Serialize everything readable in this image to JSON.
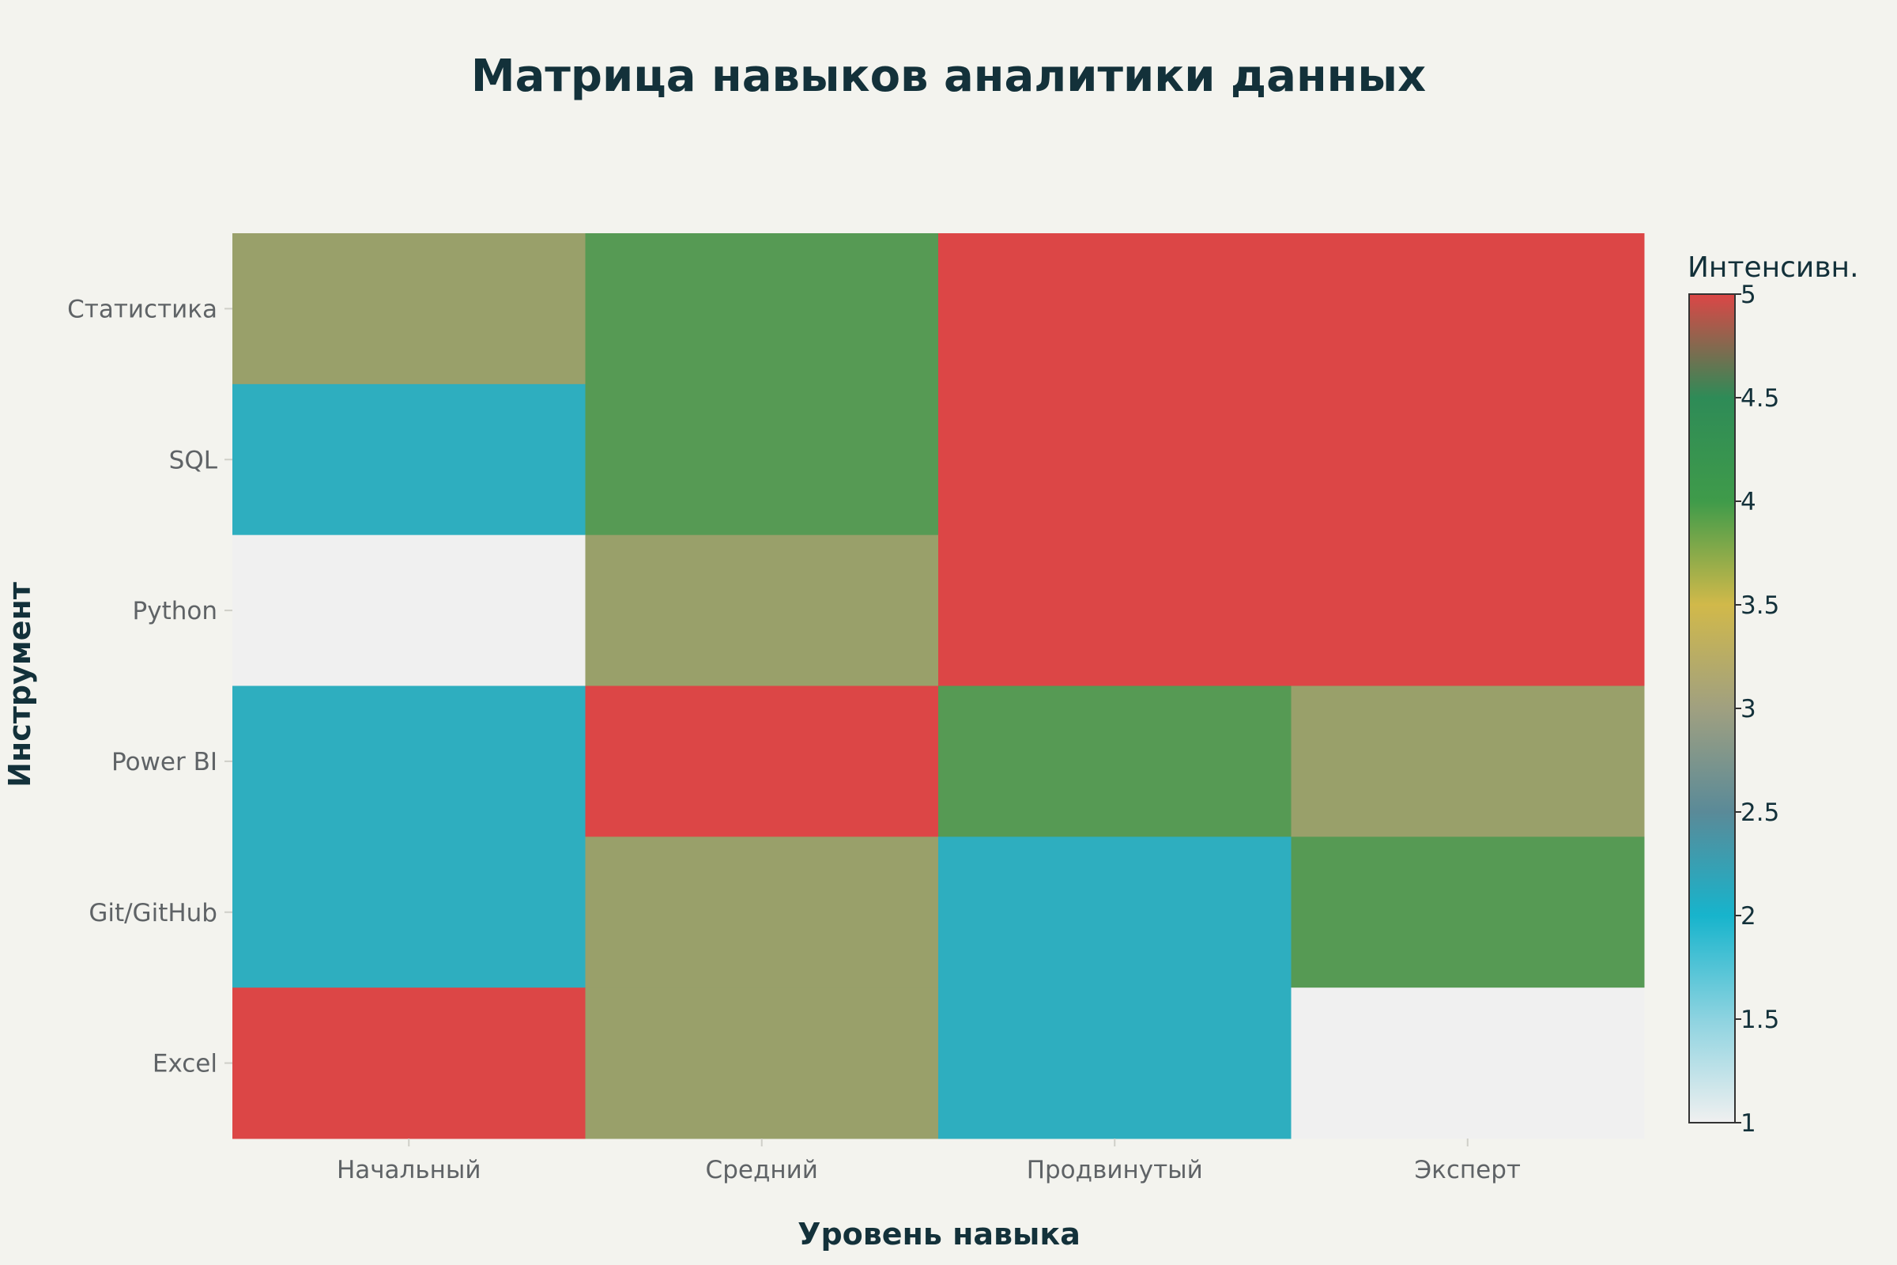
{
  "chart_data": {
    "type": "heatmap",
    "title": "Матрица навыков аналитики данных",
    "xlabel": "Уровень навыка",
    "ylabel": "Инструмент",
    "x_categories": [
      "Начальный",
      "Средний",
      "Продвинутый",
      "Эксперт"
    ],
    "y_categories": [
      "Статистика",
      "SQL",
      "Python",
      "Power BI",
      "Git/GitHub",
      "Excel"
    ],
    "z": [
      [
        3,
        4,
        5,
        5
      ],
      [
        2,
        4,
        5,
        5
      ],
      [
        1,
        3,
        5,
        5
      ],
      [
        2,
        5,
        4,
        3
      ],
      [
        2,
        3,
        2,
        4
      ],
      [
        5,
        3,
        2,
        1
      ]
    ],
    "colorbar": {
      "title": "Интенсивн.",
      "range": [
        1,
        5
      ],
      "ticks": [
        "1",
        "1.5",
        "2",
        "2.5",
        "3",
        "3.5",
        "4",
        "4.5",
        "5"
      ],
      "colorscale": [
        [
          0,
          "#f0f0f0"
        ],
        [
          0.25,
          "#17b4cc"
        ],
        [
          0.5,
          "#a0a080"
        ],
        [
          0.625,
          "#d1b94a"
        ],
        [
          0.75,
          "#3f9b4a"
        ],
        [
          0.875,
          "#2e8b57"
        ],
        [
          1,
          "#dc4646"
        ]
      ]
    },
    "cell_colors": {
      "1": "#f0f0f0",
      "2": "#2eaebf",
      "3": "#99a06a",
      "4": "#569a54",
      "5": "#dc4646"
    }
  }
}
